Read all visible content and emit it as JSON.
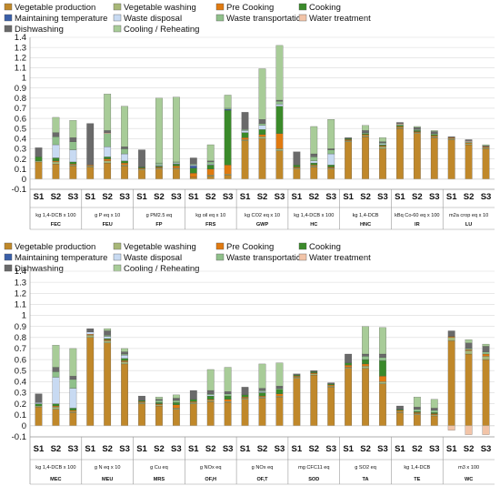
{
  "chart_data": [
    {
      "type": "bar",
      "stacked": true,
      "title": "",
      "legend_position": "top",
      "grid": "horizontal",
      "ylim": [
        -0.1,
        1.4
      ],
      "yticks": [
        "-0.1",
        "0",
        "0.1",
        "0.2",
        "0.3",
        "0.4",
        "0.5",
        "0.6",
        "0.7",
        "0.8",
        "0.9",
        "1",
        "1.1",
        "1.2",
        "1.3",
        "1.4"
      ],
      "components": [
        {
          "name": "Vegetable production",
          "color": "#c0882a"
        },
        {
          "name": "Vegetable washing",
          "color": "#a8b878"
        },
        {
          "name": "Pre Cooking",
          "color": "#e07a10"
        },
        {
          "name": "Cooking",
          "color": "#3a8a2a"
        },
        {
          "name": "Maintaining temperature",
          "color": "#3a5fa8"
        },
        {
          "name": "Waste disposal",
          "color": "#c8daf2"
        },
        {
          "name": "Waste transportation",
          "color": "#8fc08a"
        },
        {
          "name": "Water treatment",
          "color": "#f2c4a8"
        },
        {
          "name": "Dishwashing",
          "color": "#6a6a6a"
        },
        {
          "name": "Cooling / Reheating",
          "color": "#a8cc98"
        }
      ],
      "scenarios": [
        "S1",
        "S2",
        "S3"
      ],
      "groups": [
        {
          "category": "FEC",
          "unit": "kg 1,4-DCB x 100",
          "bars": [
            [
              0.17,
              0.01,
              0,
              0.04,
              0,
              0,
              0,
              0,
              0.09,
              0
            ],
            [
              0.15,
              0.02,
              0.01,
              0.03,
              0,
              0.13,
              0.08,
              0,
              0.04,
              0.15
            ],
            [
              0.13,
              0.01,
              0.01,
              0.02,
              0,
              0.12,
              0.08,
              0,
              0.04,
              0.17
            ]
          ]
        },
        {
          "category": "FEU",
          "unit": "g P eq x 10",
          "bars": [
            [
              0.12,
              0.01,
              0.01,
              0,
              0,
              0,
              0,
              0,
              0.41,
              0
            ],
            [
              0.16,
              0.02,
              0.02,
              0.02,
              0,
              0.1,
              0.13,
              0.01,
              0.02,
              0.36
            ],
            [
              0.13,
              0.01,
              0.02,
              0.02,
              0,
              0.07,
              0.05,
              0,
              0.02,
              0.4
            ]
          ]
        },
        {
          "category": "FP",
          "unit": "g PM2.5 eq",
          "bars": [
            [
              0.09,
              0.01,
              0.01,
              0.01,
              0,
              0,
              0,
              0,
              0.17,
              0
            ],
            [
              0.1,
              0.01,
              0.01,
              0.01,
              0,
              0.01,
              0.02,
              0,
              0,
              0.64
            ],
            [
              0.1,
              0.01,
              0.02,
              0.02,
              0,
              0.01,
              0.01,
              0,
              0,
              0.64
            ]
          ]
        },
        {
          "category": "FRS",
          "unit": "kg oil eq x 10",
          "bars": [
            [
              0.02,
              0,
              0.04,
              0.05,
              0.02,
              0.01,
              0.01,
              0,
              0.06,
              0
            ],
            [
              0.03,
              0.01,
              0.06,
              0.04,
              0,
              0.01,
              0.02,
              0,
              0.01,
              0.16
            ],
            [
              0.04,
              0.01,
              0.09,
              0.54,
              0.01,
              0,
              0.01,
              0,
              0,
              0.13
            ]
          ]
        },
        {
          "category": "GWP",
          "unit": "kg CO2 eq x 10",
          "bars": [
            [
              0.38,
              0.01,
              0.02,
              0.05,
              0,
              0.02,
              0.01,
              0,
              0.17,
              0
            ],
            [
              0.4,
              0.02,
              0.02,
              0.05,
              0,
              0.04,
              0.02,
              0,
              0.04,
              0.5
            ],
            [
              0.28,
              0.02,
              0.15,
              0.27,
              0,
              0.02,
              0.03,
              0,
              0.01,
              0.54
            ]
          ]
        },
        {
          "category": "HC",
          "unit": "kg 1,4-DCB x 100",
          "bars": [
            [
              0.1,
              0.01,
              0.01,
              0.02,
              0,
              0,
              0,
              0,
              0.13,
              0
            ],
            [
              0.12,
              0.01,
              0.01,
              0.02,
              0,
              0.02,
              0.04,
              0,
              0.03,
              0.27
            ],
            [
              0.1,
              0.01,
              0.01,
              0.02,
              0,
              0.11,
              0.04,
              0,
              0.01,
              0.29
            ]
          ]
        },
        {
          "category": "HNC",
          "unit": "kg 1,4-DCB",
          "bars": [
            [
              0.37,
              0.01,
              0.01,
              0.01,
              0,
              0,
              0,
              0,
              0.01,
              0
            ],
            [
              0.42,
              0.01,
              0.01,
              0.01,
              0,
              0,
              0.01,
              0,
              0.02,
              0.05
            ],
            [
              0.3,
              0.02,
              0.01,
              0.01,
              0,
              0.01,
              0.01,
              0,
              0.01,
              0.04
            ]
          ]
        },
        {
          "category": "IR",
          "unit": "kBq Co-60 eq x 100",
          "bars": [
            [
              0.5,
              0.01,
              0.01,
              0.01,
              0,
              0,
              0.01,
              0.01,
              0.01,
              0
            ],
            [
              0.45,
              0.01,
              0.01,
              0.01,
              0,
              0,
              0.01,
              0,
              0.02,
              0.01
            ],
            [
              0.41,
              0.01,
              0.01,
              0.01,
              0,
              0,
              0.01,
              0,
              0.02,
              0.01
            ]
          ]
        },
        {
          "category": "LU",
          "unit": "m2a crop eq x 10",
          "bars": [
            [
              0.39,
              0.01,
              0.01,
              0,
              0,
              0,
              0,
              0,
              0.01,
              0
            ],
            [
              0.34,
              0.01,
              0.01,
              0,
              0,
              0,
              0.01,
              0.01,
              0.01,
              0
            ],
            [
              0.3,
              0.01,
              0.01,
              0,
              0,
              0,
              0,
              0,
              0.01,
              0.01
            ]
          ]
        }
      ]
    },
    {
      "type": "bar",
      "stacked": true,
      "title": "",
      "legend_position": "top",
      "grid": "horizontal",
      "ylim": [
        -0.1,
        1.4
      ],
      "yticks": [
        "-0.1",
        "0",
        "0.1",
        "0.2",
        "0.3",
        "0.4",
        "0.5",
        "0.6",
        "0.7",
        "0.8",
        "0.9",
        "1",
        "1.1",
        "1.2",
        "1.3",
        "1.4"
      ],
      "components": [
        {
          "name": "Vegetable production",
          "color": "#c0882a"
        },
        {
          "name": "Vegetable washing",
          "color": "#a8b878"
        },
        {
          "name": "Pre Cooking",
          "color": "#e07a10"
        },
        {
          "name": "Cooking",
          "color": "#3a8a2a"
        },
        {
          "name": "Maintaining temperature",
          "color": "#3a5fa8"
        },
        {
          "name": "Waste disposal",
          "color": "#c8daf2"
        },
        {
          "name": "Waste transportation",
          "color": "#8fc08a"
        },
        {
          "name": "Water treatment",
          "color": "#f2c4a8"
        },
        {
          "name": "Dishwashing",
          "color": "#6a6a6a"
        },
        {
          "name": "Cooling / Reheating",
          "color": "#a8cc98"
        }
      ],
      "scenarios": [
        "S1",
        "S2",
        "S3"
      ],
      "groups": [
        {
          "category": "MEC",
          "unit": "kg 1,4-DCB x 100",
          "bars": [
            [
              0.17,
              0.01,
              0,
              0.02,
              0,
              0.01,
              0,
              0,
              0.08,
              0
            ],
            [
              0.15,
              0.02,
              0.01,
              0.02,
              0,
              0.24,
              0.05,
              0,
              0.04,
              0.2
            ],
            [
              0.12,
              0.01,
              0.01,
              0.02,
              0,
              0.18,
              0.08,
              0,
              0.03,
              0.25
            ]
          ]
        },
        {
          "category": "MEU",
          "unit": "g N eq x 10",
          "bars": [
            [
              0.8,
              0.02,
              0.01,
              0,
              0,
              0.02,
              0,
              0,
              0.03,
              0
            ],
            [
              0.75,
              0.02,
              0.01,
              0.01,
              0,
              0.02,
              0.01,
              0,
              0.04,
              0.02
            ],
            [
              0.56,
              0.02,
              0.01,
              0.02,
              0,
              0.03,
              0.01,
              0,
              0.02,
              0.03
            ]
          ]
        },
        {
          "category": "MRS",
          "unit": "g Cu eq",
          "bars": [
            [
              0.2,
              0.01,
              0.01,
              0.01,
              0,
              0,
              0,
              0,
              0.04,
              0
            ],
            [
              0.18,
              0.01,
              0.01,
              0.01,
              0,
              0,
              0.02,
              0,
              0.01,
              0.02
            ],
            [
              0.15,
              0.01,
              0.03,
              0.02,
              0,
              0,
              0.02,
              0,
              0.02,
              0.03
            ]
          ]
        },
        {
          "category": "OF,H",
          "unit": "g NOx eq",
          "bars": [
            [
              0.2,
              0.01,
              0.01,
              0.02,
              0,
              0,
              0,
              0,
              0.08,
              0
            ],
            [
              0.22,
              0.01,
              0.01,
              0.03,
              0,
              0.01,
              0.01,
              0,
              0.03,
              0.19
            ],
            [
              0.21,
              0.01,
              0.02,
              0.03,
              0,
              0,
              0.02,
              0,
              0.02,
              0.22
            ]
          ]
        },
        {
          "category": "OF,T",
          "unit": "g NOx eq",
          "bars": [
            [
              0.24,
              0.01,
              0.01,
              0.02,
              0,
              0,
              0,
              0,
              0.07,
              0
            ],
            [
              0.25,
              0.01,
              0.01,
              0.03,
              0,
              0.01,
              0.01,
              0,
              0.02,
              0.22
            ],
            [
              0.26,
              0.01,
              0.02,
              0.04,
              0,
              0,
              0.01,
              0,
              0.02,
              0.21
            ]
          ]
        },
        {
          "category": "SOD",
          "unit": "mg CFC11 eq",
          "bars": [
            [
              0.43,
              0.01,
              0.01,
              0.01,
              0,
              0,
              0,
              0,
              0.01,
              0
            ],
            [
              0.46,
              0.01,
              0.01,
              0.01,
              0,
              0,
              0,
              0,
              0.01,
              0
            ],
            [
              0.35,
              0.01,
              0.01,
              0.01,
              0,
              0,
              0,
              0,
              0.01,
              0
            ]
          ]
        },
        {
          "category": "TA",
          "unit": "g SO2 eq",
          "bars": [
            [
              0.52,
              0.01,
              0.02,
              0.02,
              0,
              0,
              0,
              0,
              0.08,
              0
            ],
            [
              0.52,
              0.02,
              0.02,
              0.04,
              0,
              0,
              0.03,
              0,
              0.02,
              0.25
            ],
            [
              0.38,
              0.02,
              0.05,
              0.14,
              0,
              0,
              0.03,
              0,
              0.03,
              0.24
            ]
          ]
        },
        {
          "category": "TE",
          "unit": "kg 1,4-DCB",
          "bars": [
            [
              0.12,
              0.01,
              0.01,
              0.01,
              0,
              0,
              0,
              0,
              0.03,
              0
            ],
            [
              0.1,
              0.01,
              0.01,
              0.01,
              0,
              0,
              0.02,
              0,
              0.02,
              0.09
            ],
            [
              0.09,
              0.01,
              0.01,
              0.01,
              0,
              0,
              0.02,
              0,
              0.02,
              0.08
            ]
          ]
        },
        {
          "category": "WC",
          "unit": "m3 x 100",
          "bars": [
            [
              0.77,
              0.03,
              0.01,
              0,
              0,
              0,
              0,
              -0.04,
              0.05,
              0
            ],
            [
              0.65,
              0.03,
              0.01,
              0,
              0,
              0,
              0.01,
              -0.08,
              0.05,
              0.03
            ],
            [
              0.6,
              0.03,
              0.02,
              0,
              0,
              0,
              0.02,
              -0.08,
              0.05,
              0.02
            ]
          ]
        }
      ]
    }
  ]
}
